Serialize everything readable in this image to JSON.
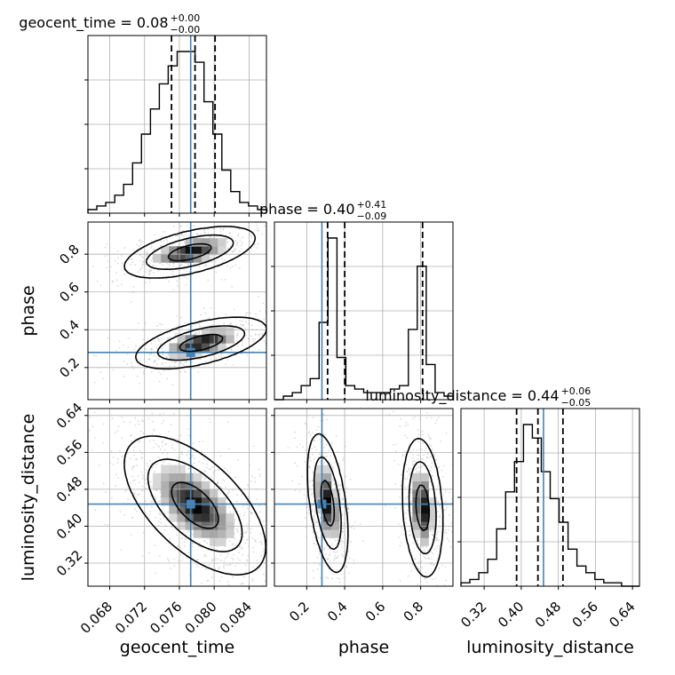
{
  "colors": {
    "truth": "#4682b4",
    "contour": "#000000",
    "hist": "#000000",
    "grid": "#b0b0b0",
    "points": "#bdbdbd"
  },
  "chart_data": {
    "type": "corner",
    "parameters": [
      {
        "name": "geocent_time",
        "xlabel": "geocent_time",
        "ylabel": "",
        "title": {
          "main": "geocent_time = 0.08",
          "sup": "+0.00",
          "sub": "−0.00"
        },
        "range": [
          0.0655,
          0.086
        ],
        "ticks": [
          0.068,
          0.072,
          0.076,
          0.08,
          0.084
        ],
        "tick_labels": [
          "0.068",
          "0.072",
          "0.076",
          "0.080",
          "0.084"
        ],
        "truth": 0.0773,
        "quantiles": [
          0.0751,
          0.0778,
          0.0801
        ],
        "hist": [
          1,
          2,
          3,
          5,
          8,
          14,
          22,
          29,
          36,
          41,
          45,
          45,
          42,
          31,
          22,
          12,
          6,
          3,
          2,
          1
        ]
      },
      {
        "name": "phase",
        "xlabel": "phase",
        "ylabel": "phase",
        "title": {
          "main": "phase = 0.40",
          "sup": "+0.41",
          "sub": "−0.09"
        },
        "range": [
          0.03,
          0.97
        ],
        "ticks": [
          0.2,
          0.4,
          0.6,
          0.8
        ],
        "tick_labels": [
          "0.2",
          "0.4",
          "0.6",
          "0.8"
        ],
        "truth": 0.28,
        "quantiles": [
          0.31,
          0.4,
          0.81
        ],
        "hist": [
          0,
          1,
          2,
          4,
          6,
          22,
          46,
          12,
          4,
          3,
          2,
          2,
          2,
          3,
          4,
          20,
          38,
          10,
          2,
          1
        ]
      },
      {
        "name": "luminosity_distance",
        "xlabel": "luminosity_distance",
        "ylabel": "luminosity_distance",
        "title": {
          "main": "luminosity_distance = 0.44",
          "sup": "+0.06",
          "sub": "−0.05"
        },
        "range": [
          0.27,
          0.655
        ],
        "ticks": [
          0.32,
          0.4,
          0.48,
          0.56,
          0.64
        ],
        "tick_labels": [
          "0.32",
          "0.40",
          "0.48",
          "0.56",
          "0.64"
        ],
        "truth": 0.448,
        "quantiles": [
          0.39,
          0.436,
          0.49
        ],
        "hist": [
          1,
          2,
          4,
          8,
          17,
          28,
          37,
          48,
          44,
          34,
          26,
          19,
          11,
          6,
          4,
          2,
          1,
          1,
          0,
          0
        ]
      }
    ],
    "pairs": [
      {
        "x": "geocent_time",
        "y": "phase",
        "modes": [
          {
            "cx": 0.0772,
            "cy": 0.81,
            "sx": 0.0025,
            "sy": 0.045,
            "rho": 0.55,
            "w": 0.5
          },
          {
            "cx": 0.0785,
            "cy": 0.33,
            "sx": 0.0025,
            "sy": 0.045,
            "rho": 0.55,
            "w": 0.5
          }
        ]
      },
      {
        "x": "geocent_time",
        "y": "luminosity_distance",
        "modes": [
          {
            "cx": 0.0778,
            "cy": 0.445,
            "sx": 0.0027,
            "sy": 0.05,
            "rho": -0.6,
            "w": 1.0
          }
        ]
      },
      {
        "x": "phase",
        "y": "luminosity_distance",
        "modes": [
          {
            "cx": 0.31,
            "cy": 0.45,
            "sx": 0.035,
            "sy": 0.05,
            "rho": -0.45,
            "w": 0.5
          },
          {
            "cx": 0.81,
            "cy": 0.44,
            "sx": 0.035,
            "sy": 0.05,
            "rho": -0.2,
            "w": 0.5
          }
        ]
      }
    ],
    "contour_levels": [
      0.393,
      0.865,
      0.989
    ],
    "grid": true,
    "truth_marker": "square"
  }
}
